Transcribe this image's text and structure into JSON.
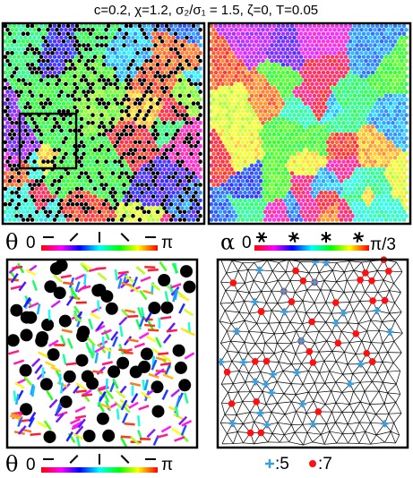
{
  "header": {
    "title": "c=0.2, χ=1.2, σ₂/σ₁ = 1.5, ζ=0, T=0.05"
  },
  "colorbars": [
    {
      "symbol": "θ",
      "min_label": "0",
      "max_label": "π"
    },
    {
      "symbol": "α",
      "min_label": "0",
      "max_label": "π/3"
    },
    {
      "symbol": "θ",
      "min_label": "0",
      "max_label": "π"
    }
  ],
  "legend": [
    {
      "label": ":5"
    },
    {
      "label": ":7"
    }
  ]
}
